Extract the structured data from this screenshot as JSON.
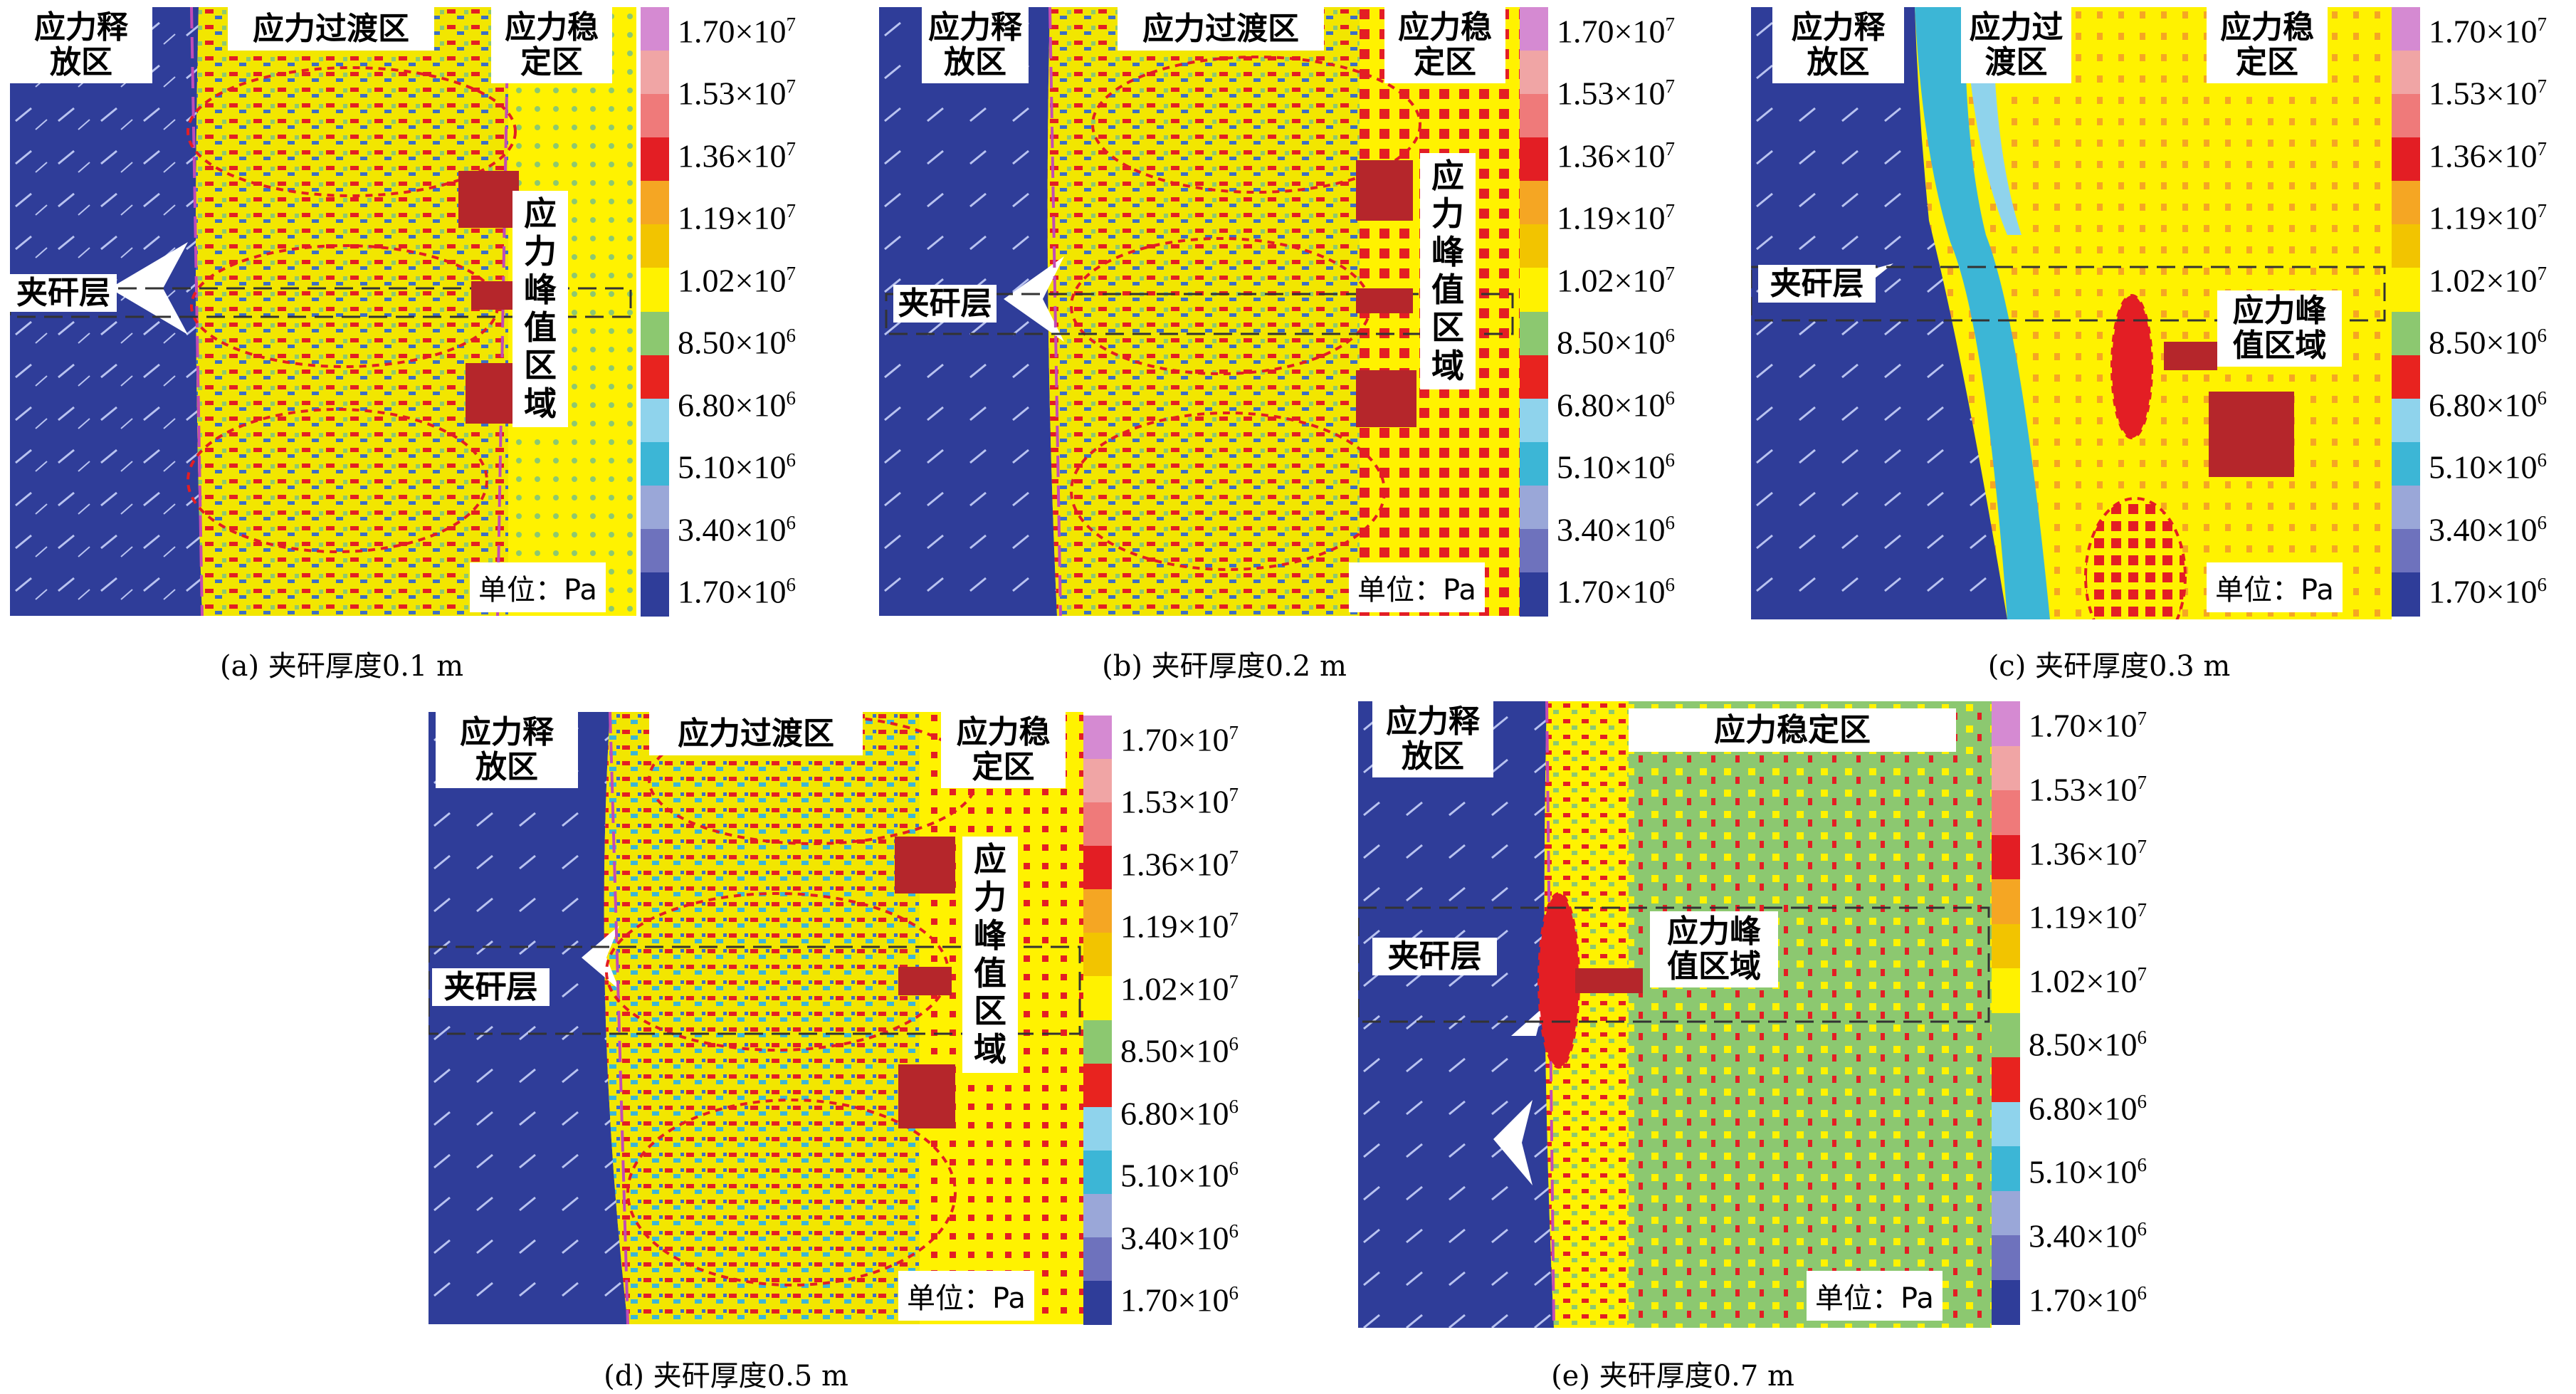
{
  "figure": {
    "panels": [
      {
        "id": "a",
        "caption": "(a) 夹矸厚度0.1 m",
        "zone_labels": {
          "release": "应力释\n放区",
          "transition": "应力过渡区",
          "stable": "应力稳\n定区"
        },
        "parting_label": "夹矸层",
        "peak_label": "应力峰值区域",
        "unit": "单位：Pa"
      },
      {
        "id": "b",
        "caption": "(b) 夹矸厚度0.2 m",
        "zone_labels": {
          "release": "应力释\n放区",
          "transition": "应力过渡区",
          "stable": "应力稳\n定区"
        },
        "parting_label": "夹矸层",
        "peak_label": "应力峰值区域",
        "unit": "单位：Pa"
      },
      {
        "id": "c",
        "caption": "(c) 夹矸厚度0.3 m",
        "zone_labels": {
          "release": "应力释\n放区",
          "transition": "应力过\n渡区",
          "stable": "应力稳\n定区"
        },
        "parting_label": "夹矸层",
        "peak_label": "应力峰\n值区域",
        "unit": "单位：Pa"
      },
      {
        "id": "d",
        "caption": "(d) 夹矸厚度0.5 m",
        "zone_labels": {
          "release": "应力释\n放区",
          "transition": "应力过渡区",
          "stable": "应力稳\n定区"
        },
        "parting_label": "夹矸层",
        "peak_label": "应力峰值区域",
        "unit": "单位：Pa"
      },
      {
        "id": "e",
        "caption": "(e) 夹矸厚度0.7 m",
        "zone_labels": {
          "release": "应力释\n放区",
          "stable": "应力稳定区"
        },
        "parting_label": "夹矸层",
        "peak_label": "应力峰\n值区域",
        "unit": "单位：Pa"
      }
    ]
  },
  "chart_data": {
    "type": "heatmap",
    "unit": "Pa",
    "legend_ticks": [
      {
        "mantissa": "1.70",
        "exp": "7",
        "value": 17000000
      },
      {
        "mantissa": "1.53",
        "exp": "7",
        "value": 15300000
      },
      {
        "mantissa": "1.36",
        "exp": "7",
        "value": 13600000
      },
      {
        "mantissa": "1.19",
        "exp": "7",
        "value": 11900000
      },
      {
        "mantissa": "1.02",
        "exp": "7",
        "value": 10200000
      },
      {
        "mantissa": "8.50",
        "exp": "6",
        "value": 8500000
      },
      {
        "mantissa": "6.80",
        "exp": "6",
        "value": 6800000
      },
      {
        "mantissa": "5.10",
        "exp": "6",
        "value": 5100000
      },
      {
        "mantissa": "3.40",
        "exp": "6",
        "value": 3400000
      },
      {
        "mantissa": "1.70",
        "exp": "6",
        "value": 1700000
      }
    ],
    "legend_colors": [
      "#d58ad2",
      "#f0a5a5",
      "#ef7a7a",
      "#e31e24",
      "#f5a623",
      "#f2c400",
      "#fff200",
      "#8cc870",
      "#e8231f",
      "#8fd3ec",
      "#3cb6d6",
      "#9aa7d8",
      "#6e72bd",
      "#2f3d99"
    ],
    "panels": [
      {
        "id": "a",
        "parting_thickness_m": 0.1
      },
      {
        "id": "b",
        "parting_thickness_m": 0.2
      },
      {
        "id": "c",
        "parting_thickness_m": 0.3
      },
      {
        "id": "d",
        "parting_thickness_m": 0.5
      },
      {
        "id": "e",
        "parting_thickness_m": 0.7
      }
    ]
  }
}
